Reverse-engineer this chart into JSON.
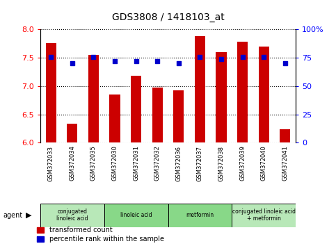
{
  "title": "GDS3808 / 1418103_at",
  "samples": [
    "GSM372033",
    "GSM372034",
    "GSM372035",
    "GSM372030",
    "GSM372031",
    "GSM372032",
    "GSM372036",
    "GSM372037",
    "GSM372038",
    "GSM372039",
    "GSM372040",
    "GSM372041"
  ],
  "transformed_count": [
    7.76,
    6.33,
    7.55,
    6.85,
    7.18,
    6.97,
    6.92,
    7.88,
    7.6,
    7.78,
    7.7,
    6.24
  ],
  "percentile_rank": [
    76,
    70,
    76,
    72,
    72,
    72,
    70,
    76,
    74,
    76,
    76,
    70
  ],
  "ylim_left": [
    6,
    8
  ],
  "ylim_right": [
    0,
    100
  ],
  "yticks_left": [
    6,
    6.5,
    7,
    7.5,
    8
  ],
  "yticks_right": [
    0,
    25,
    50,
    75,
    100
  ],
  "ytick_labels_right": [
    "0",
    "25",
    "50",
    "75",
    "100%"
  ],
  "bar_color": "#cc0000",
  "dot_color": "#0000cc",
  "agent_groups": [
    {
      "label": "conjugated\nlinoleic acid",
      "start": 0,
      "end": 3,
      "color": "#b8e8b8"
    },
    {
      "label": "linoleic acid",
      "start": 3,
      "end": 6,
      "color": "#88d888"
    },
    {
      "label": "metformin",
      "start": 6,
      "end": 9,
      "color": "#88d888"
    },
    {
      "label": "conjugated linoleic acid\n+ metformin",
      "start": 9,
      "end": 12,
      "color": "#b8e8b8"
    }
  ],
  "legend_labels": [
    "transformed count",
    "percentile rank within the sample"
  ],
  "legend_colors": [
    "#cc0000",
    "#0000cc"
  ],
  "bar_width": 0.5,
  "figsize": [
    4.83,
    3.54
  ],
  "dpi": 100
}
